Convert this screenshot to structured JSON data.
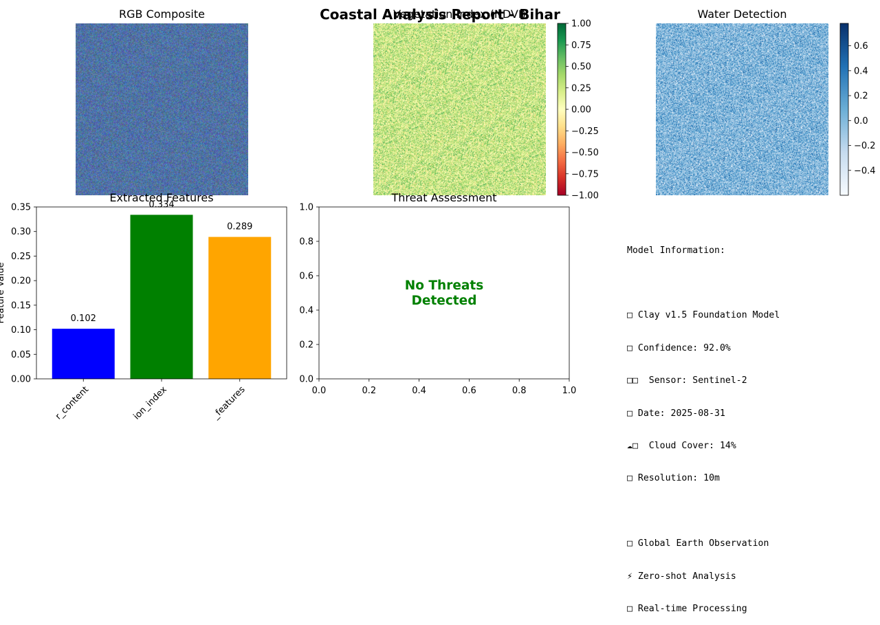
{
  "figure": {
    "title": "Coastal Analysis Report - Bihar"
  },
  "panels": {
    "rgb": {
      "title": "RGB Composite"
    },
    "ndvi": {
      "title": "Vegetation Index (NDVI)",
      "colorbar_ticks": [
        "1.00",
        "0.75",
        "0.50",
        "0.25",
        "0.00",
        "−0.25",
        "−0.50",
        "−0.75",
        "−1.00"
      ]
    },
    "water": {
      "title": "Water Detection",
      "colorbar_ticks": [
        "0.6",
        "0.4",
        "0.2",
        "0.0",
        "−0.2",
        "−0.4"
      ]
    },
    "threat": {
      "title": "Threat Assessment",
      "message_line1": "No Threats",
      "message_line2": "Detected",
      "message_color": "#008000"
    }
  },
  "chart_data": [
    {
      "type": "bar",
      "title": "Extracted Features",
      "categories": [
        "water_content",
        "vegetation_index",
        "urban_features"
      ],
      "category_labels_visible": [
        "r_content",
        "ion_index",
        "_features"
      ],
      "values": [
        0.102,
        0.334,
        0.289
      ],
      "value_labels": [
        "0.102",
        "0.334",
        "0.289"
      ],
      "colors": [
        "#0000ff",
        "#008000",
        "#ffa500"
      ],
      "ylabel": "Feature Value",
      "ylim": [
        0,
        0.35
      ],
      "yticks": [
        "0.00",
        "0.05",
        "0.10",
        "0.15",
        "0.20",
        "0.25",
        "0.30",
        "0.35"
      ]
    },
    {
      "type": "scatter",
      "title": "Threat Assessment",
      "series": [],
      "xlim": [
        0,
        1
      ],
      "ylim": [
        0,
        1
      ],
      "xticks": [
        "0.0",
        "0.2",
        "0.4",
        "0.6",
        "0.8",
        "1.0"
      ],
      "yticks": [
        "0.0",
        "0.2",
        "0.4",
        "0.6",
        "0.8",
        "1.0"
      ]
    }
  ],
  "model_info": {
    "heading": "Model Information:",
    "lines": [
      "□ Clay v1.5 Foundation Model",
      "□ Confidence: 92.0%",
      "□□  Sensor: Sentinel-2",
      "□ Date: 2025-08-31",
      "☁□  Cloud Cover: 14%",
      "□ Resolution: 10m"
    ],
    "lines2": [
      "□ Global Earth Observation",
      "⚡ Zero-shot Analysis",
      "□ Real-time Processing"
    ]
  }
}
